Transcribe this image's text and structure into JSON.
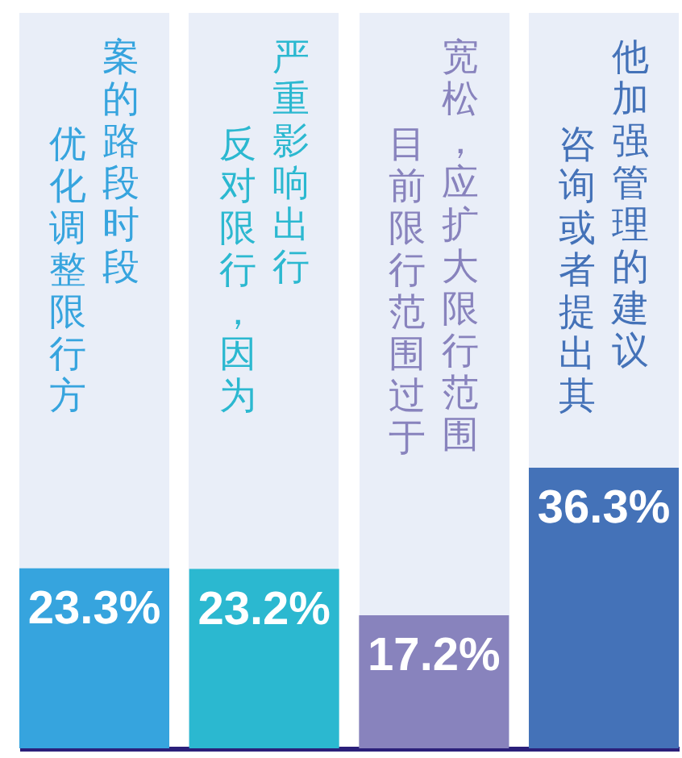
{
  "chart_data": {
    "type": "bar",
    "categories": [
      "优化调整限行方案的路段时段",
      "反对限行，因为严重影响出行",
      "目前限行范围过于宽松，应扩大限行范围",
      "咨询或者提出其他加强管理的建议"
    ],
    "values": [
      23.3,
      23.2,
      17.2,
      36.3
    ],
    "colors": [
      "#36a4de",
      "#2bb8d0",
      "#8883bd",
      "#4472b8"
    ],
    "value_labels": [
      "23.3%",
      "23.2%",
      "17.2%",
      "36.3%"
    ]
  }
}
